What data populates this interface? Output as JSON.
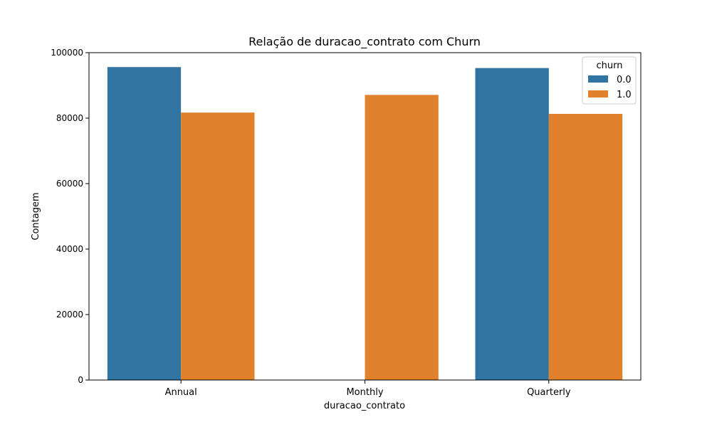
{
  "chart_data": {
    "type": "bar",
    "title": "Relação de duracao_contrato com Churn",
    "xlabel": "duracao_contrato",
    "ylabel": "Contagem",
    "categories": [
      "Annual",
      "Monthly",
      "Quarterly"
    ],
    "series": [
      {
        "name": "0.0",
        "values": [
          95600,
          0,
          95300
        ],
        "color": "#3274a1"
      },
      {
        "name": "1.0",
        "values": [
          81700,
          87100,
          81300
        ],
        "color": "#e1812c"
      }
    ],
    "ylim": [
      0,
      100000
    ],
    "yticks": [
      0,
      20000,
      40000,
      60000,
      80000,
      100000
    ],
    "grid": false,
    "legend": {
      "title": "churn",
      "placement": "top-right"
    }
  }
}
